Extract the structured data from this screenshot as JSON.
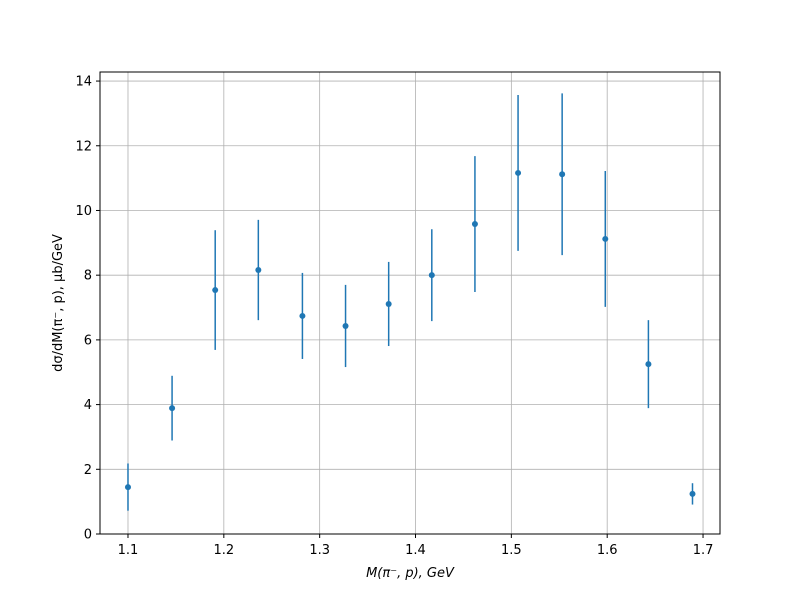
{
  "chart_data": {
    "type": "errorbar",
    "x_label": "M(π⁻, p), GeV",
    "y_label": "dσ/dM(π⁻, p), μb/GeV",
    "x": [
      1.1,
      1.146,
      1.191,
      1.236,
      1.282,
      1.327,
      1.372,
      1.417,
      1.462,
      1.507,
      1.553,
      1.598,
      1.643,
      1.689
    ],
    "values": [
      1.45,
      3.89,
      7.54,
      8.16,
      6.74,
      6.43,
      7.11,
      8.0,
      9.58,
      11.16,
      11.12,
      9.12,
      5.25,
      1.24
    ],
    "errors": [
      0.73,
      1.0,
      1.85,
      1.55,
      1.33,
      1.27,
      1.3,
      1.42,
      2.1,
      2.41,
      2.5,
      2.1,
      1.36,
      0.33
    ],
    "color": "#1f77b4",
    "xlim": [
      1.0708,
      1.7177
    ],
    "ylim": [
      0,
      14.28
    ],
    "xticks": [
      1.1,
      1.2,
      1.3,
      1.4,
      1.5,
      1.6,
      1.7
    ],
    "yticks": [
      0,
      2,
      4,
      6,
      8,
      10,
      12,
      14
    ],
    "grid": true
  }
}
